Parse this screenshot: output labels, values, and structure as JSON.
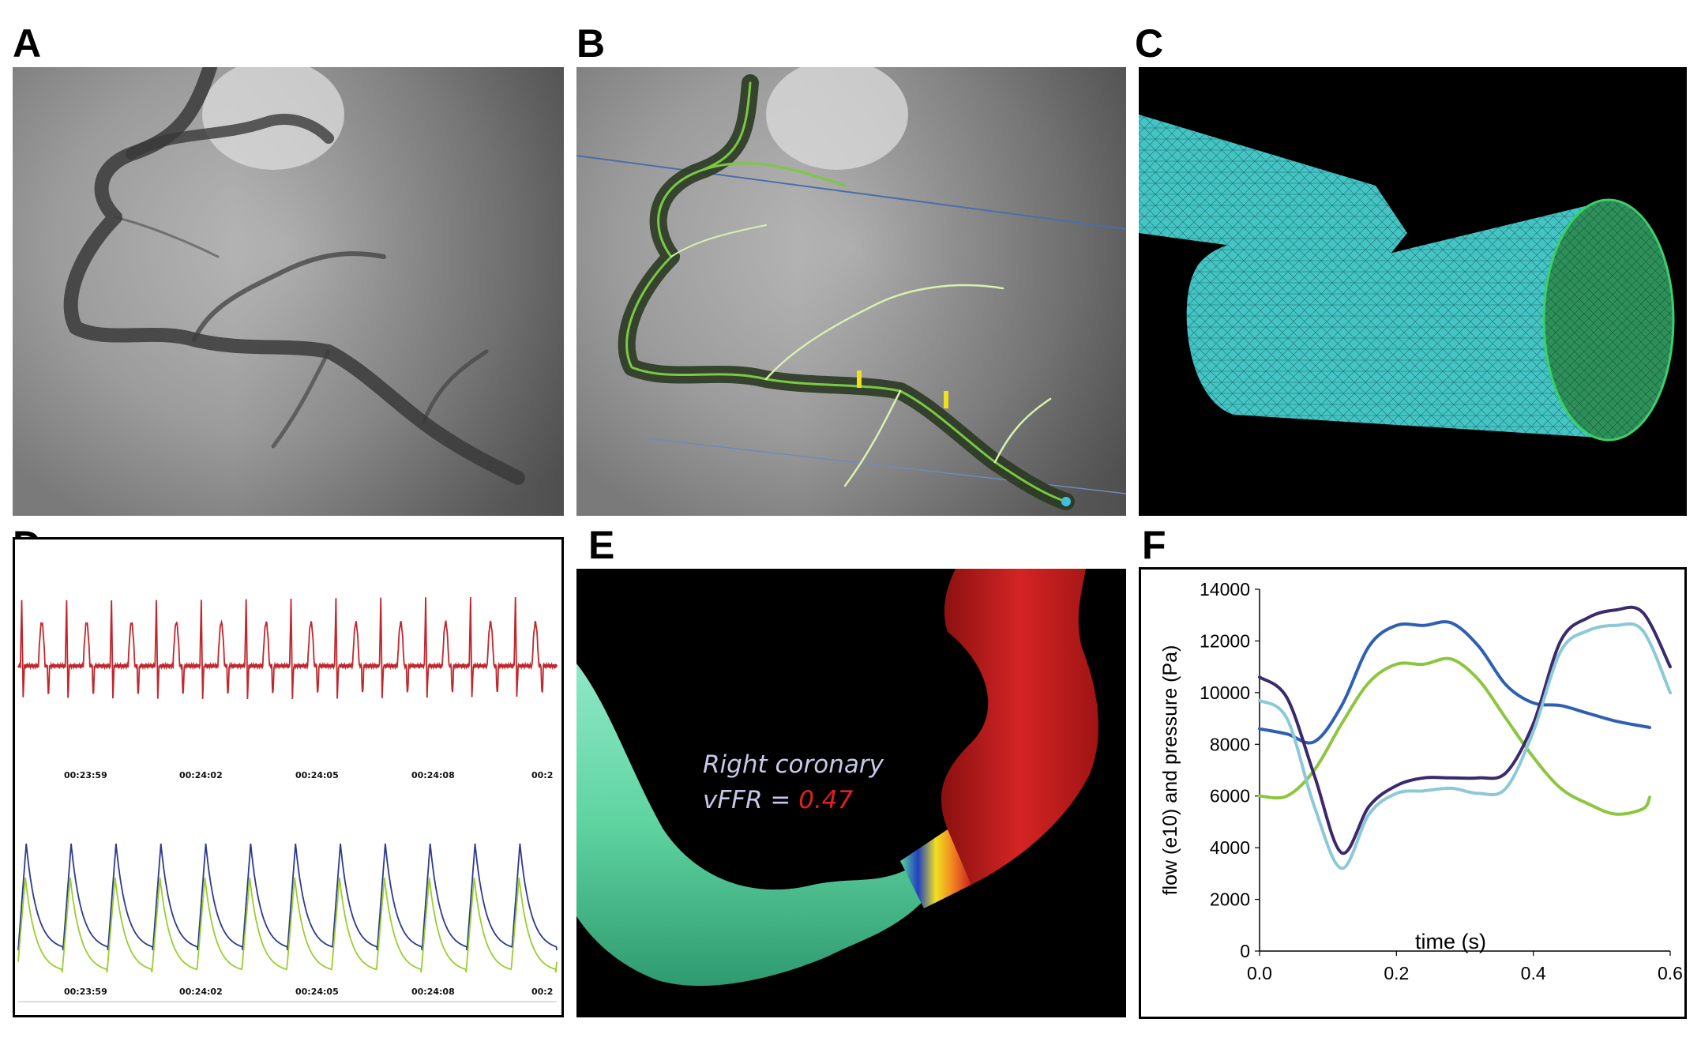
{
  "figure": {
    "panels": {
      "A": {
        "label": "A"
      },
      "B": {
        "label": "B"
      },
      "C": {
        "label": "C"
      },
      "D": {
        "label": "D",
        "timestamps": [
          "00:23:59",
          "00:24:02",
          "00:24:05",
          "00:24:08",
          "00:2"
        ]
      },
      "E": {
        "label": "E",
        "vessel_name": "Right coronary",
        "vffr_prefix": "vFFR = ",
        "vffr_value": "0.47"
      },
      "F": {
        "label": "F"
      }
    },
    "colors": {
      "ecg": "#c0272d",
      "pressure_blue": "#2e3a8c",
      "pressure_green": "#9acd32",
      "mesh": "#3fbfbf",
      "vessel_green": "#5ed3a0",
      "vessel_red": "#cc2020",
      "flow_blue": "#2f5fb3",
      "flow_green": "#8cc63f",
      "flow_purple": "#3b2a6b",
      "flow_lightblue": "#8cc8d8"
    }
  },
  "chart_data": {
    "type": "line",
    "title": "",
    "xlabel": "time (s)",
    "ylabel": "flow (e10) and pressure (Pa)",
    "xlim": [
      0.0,
      0.6
    ],
    "ylim": [
      0,
      14000
    ],
    "xticks": [
      "0.0",
      "0.2",
      "0.4",
      "0.6"
    ],
    "yticks": [
      "0",
      "2000",
      "4000",
      "6000",
      "8000",
      "10000",
      "12000",
      "14000"
    ],
    "grid": false,
    "legend": "none",
    "series": [
      {
        "color": "#2f5fb3",
        "x": [
          0.0,
          0.04,
          0.08,
          0.12,
          0.16,
          0.2,
          0.24,
          0.28,
          0.32,
          0.36,
          0.4,
          0.44,
          0.48,
          0.52,
          0.56,
          0.57
        ],
        "y": [
          8600,
          8400,
          8100,
          9500,
          11800,
          12600,
          12600,
          12700,
          11800,
          10300,
          9600,
          9500,
          9200,
          8900,
          8700,
          8650
        ]
      },
      {
        "color": "#8cc63f",
        "x": [
          0.0,
          0.04,
          0.08,
          0.12,
          0.16,
          0.2,
          0.24,
          0.28,
          0.32,
          0.36,
          0.4,
          0.44,
          0.48,
          0.52,
          0.56,
          0.57
        ],
        "y": [
          6000,
          6000,
          7000,
          8800,
          10400,
          11100,
          11100,
          11300,
          10500,
          9000,
          7500,
          6300,
          5700,
          5300,
          5500,
          5950
        ]
      },
      {
        "color": "#3b2a6b",
        "x": [
          0.0,
          0.04,
          0.08,
          0.12,
          0.16,
          0.2,
          0.24,
          0.28,
          0.32,
          0.36,
          0.4,
          0.44,
          0.48,
          0.52,
          0.56,
          0.6
        ],
        "y": [
          10600,
          9800,
          6800,
          3800,
          5600,
          6400,
          6700,
          6700,
          6700,
          6900,
          8800,
          12000,
          12900,
          13200,
          13100,
          11000
        ]
      },
      {
        "color": "#8cc8d8",
        "x": [
          0.0,
          0.04,
          0.08,
          0.12,
          0.16,
          0.2,
          0.24,
          0.28,
          0.32,
          0.36,
          0.4,
          0.44,
          0.48,
          0.52,
          0.56,
          0.6
        ],
        "y": [
          9700,
          9000,
          5600,
          3200,
          5300,
          6100,
          6200,
          6300,
          6100,
          6300,
          8500,
          11600,
          12400,
          12600,
          12400,
          10000
        ]
      }
    ]
  }
}
